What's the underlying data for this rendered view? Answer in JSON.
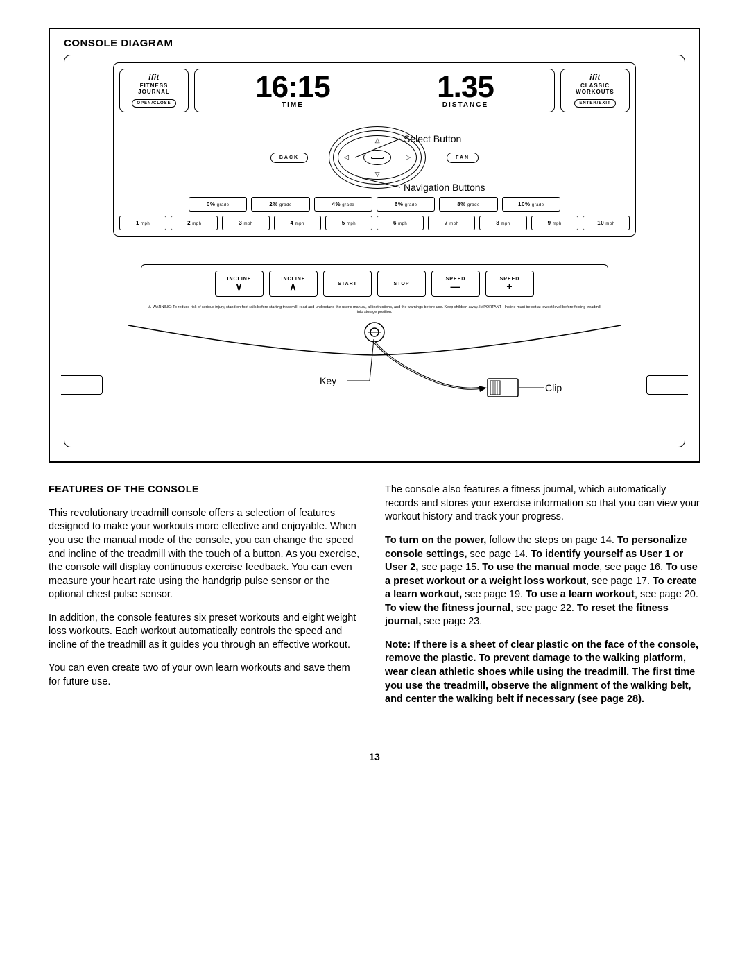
{
  "diagram": {
    "title": "CONSOLE DIAGRAM",
    "left_panel": {
      "brand": "ifit",
      "line1": "FITNESS",
      "line2": "JOURNAL",
      "button": "OPEN/CLOSE"
    },
    "display": {
      "time_val": "16:15",
      "time_label": "TIME",
      "dist_val": "1.35",
      "dist_label": "DISTANCE"
    },
    "right_panel": {
      "brand": "ifit",
      "line1": "CLASSIC",
      "line2": "WORKOUTS",
      "button": "ENTER/EXIT"
    },
    "back_btn": "BACK",
    "fan_btn": "FAN",
    "callout_select": "Select Button",
    "callout_nav": "Navigation Buttons",
    "grade_buttons": [
      "0% grade",
      "2% grade",
      "4% grade",
      "6% grade",
      "8% grade",
      "10% grade"
    ],
    "speed_buttons": [
      "1 mph",
      "2 mph",
      "3 mph",
      "4 mph",
      "5 mph",
      "6 mph",
      "7 mph",
      "8 mph",
      "9 mph",
      "10 mph"
    ],
    "controls": [
      {
        "label": "INCLINE",
        "sym": "∨"
      },
      {
        "label": "INCLINE",
        "sym": "∧"
      },
      {
        "label": "START",
        "sym": ""
      },
      {
        "label": "STOP",
        "sym": ""
      },
      {
        "label": "SPEED",
        "sym": "—"
      },
      {
        "label": "SPEED",
        "sym": "+"
      }
    ],
    "warning": "⚠ WARNING: To reduce risk of serious injury, stand on foot rails before starting treadmill, read and understand the user's manual, all instructions, and the warnings before use. Keep children away.   IMPORTANT : Incline must be set at lowest level before folding treadmill into storage position.",
    "key_label": "Key",
    "clip_label": "Clip"
  },
  "content": {
    "heading": "FEATURES OF THE CONSOLE",
    "left": [
      "This revolutionary treadmill console offers a selection of features designed to make your workouts more effective and enjoyable. When you use the manual mode of the console, you can change the speed and incline of the treadmill with the touch of a button. As you exercise, the console will display continuous exercise feedback. You can even measure your heart rate using the handgrip pulse sensor or the optional chest pulse sensor.",
      "In addition, the console features six preset workouts and eight weight loss workouts. Each workout automatically controls the speed and incline of the treadmill as it guides you through an effective workout.",
      "You can even create two of your own learn workouts and save them for future use."
    ],
    "right_intro": "The console also features a fitness journal, which automatically records and stores your exercise information so that you can view your workout history and track your progress.",
    "right_refs": {
      "b1": "To turn on the power,",
      "t1": " follow the steps on page 14. ",
      "b2": "To personalize console settings,",
      "t2": " see page 14. ",
      "b3": "To identify yourself as User 1 or User 2,",
      "t3": " see page 15. ",
      "b4": "To use the manual mode",
      "t4": ", see page 16. ",
      "b5": "To use a preset workout or a weight loss workout",
      "t5": ", see page 17. ",
      "b6": "To create a learn workout,",
      "t6": " see page 19. ",
      "b7": "To use a learn workout",
      "t7": ", see page 20. ",
      "b8": "To view the fitness journal",
      "t8": ", see page 22. ",
      "b9": "To reset the fitness journal,",
      "t9": " see page 23."
    },
    "right_note": "Note: If there is a sheet of clear plastic on the face of the console, remove the plastic. To prevent damage to the walking platform, wear clean athletic shoes while using the treadmill. The first time you use the treadmill, observe the alignment of the walking belt, and center the walking belt if necessary (see page 28)."
  },
  "page_number": "13"
}
